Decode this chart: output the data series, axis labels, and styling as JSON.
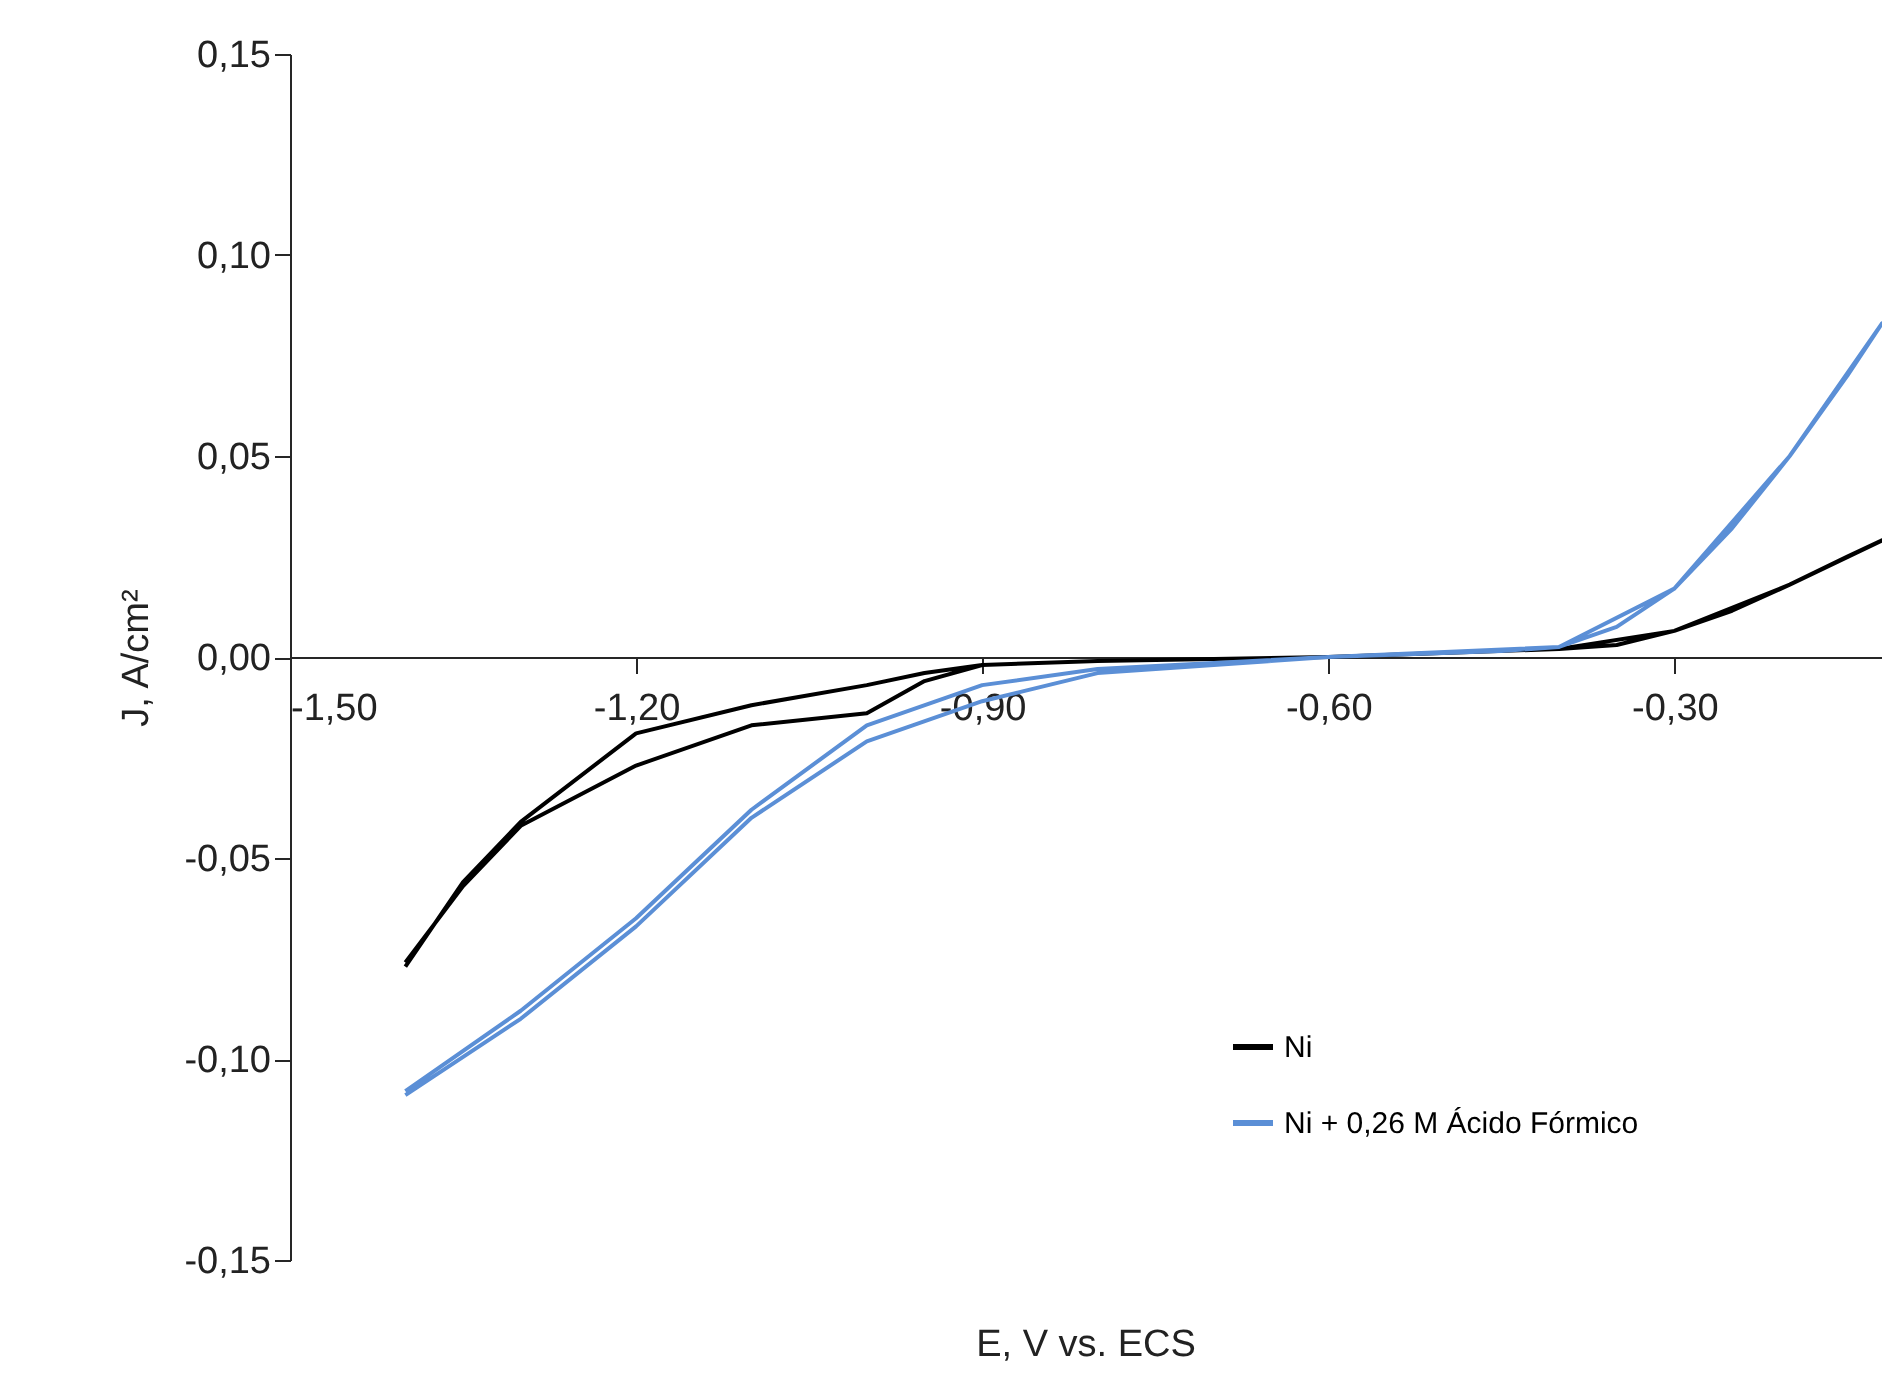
{
  "chart_data": {
    "type": "line",
    "xlabel": "E, V vs. ECS",
    "ylabel": "J, A/cm²",
    "xlim": [
      -1.5,
      -0.12
    ],
    "ylim": [
      -0.15,
      0.15
    ],
    "xticks": [
      {
        "value": -1.5,
        "label": "-1,50"
      },
      {
        "value": -1.2,
        "label": "-1,20"
      },
      {
        "value": -0.9,
        "label": "-0,90"
      },
      {
        "value": -0.6,
        "label": "-0,60"
      },
      {
        "value": -0.3,
        "label": "-0,30"
      }
    ],
    "yticks": [
      {
        "value": -0.15,
        "label": "-0,15"
      },
      {
        "value": -0.1,
        "label": "-0,10"
      },
      {
        "value": -0.05,
        "label": "-0,05"
      },
      {
        "value": 0,
        "label": "0,00"
      },
      {
        "value": 0.05,
        "label": "0,05"
      },
      {
        "value": 0.1,
        "label": "0,10"
      },
      {
        "value": 0.15,
        "label": "0,15"
      }
    ],
    "grid": false,
    "legend": "bottom right",
    "marker": "none",
    "line_style": "solid",
    "series": [
      {
        "name": "Ni",
        "color": "#000000",
        "x": [
          -1.4,
          -1.35,
          -1.3,
          -1.2,
          -1.1,
          -1.0,
          -0.95,
          -0.9,
          -0.8,
          -0.6,
          -0.4,
          -0.35,
          -0.3,
          -0.25,
          -0.2,
          -0.15,
          -0.12,
          -0.2,
          -0.3,
          -0.4,
          -0.6,
          -0.8,
          -0.9,
          -0.95,
          -1.0,
          -1.1,
          -1.2,
          -1.3,
          -1.35,
          -1.4
        ],
        "values": [
          -0.077,
          -0.056,
          -0.041,
          -0.019,
          -0.012,
          -0.007,
          -0.004,
          -0.002,
          -0.001,
          0.0,
          0.002,
          0.003,
          0.0065,
          0.0115,
          0.018,
          0.025,
          0.029,
          0.018,
          0.0065,
          0.002,
          0.0,
          -0.001,
          -0.002,
          -0.006,
          -0.014,
          -0.017,
          -0.027,
          -0.042,
          -0.057,
          -0.076
        ]
      },
      {
        "name": "Ni + 0,26 M Ácido Fórmico",
        "color": "#5b8fd6",
        "x": [
          -1.4,
          -1.3,
          -1.2,
          -1.1,
          -1.0,
          -0.9,
          -0.8,
          -0.6,
          -0.45,
          -0.4,
          -0.35,
          -0.3,
          -0.25,
          -0.2,
          -0.15,
          -0.12,
          -0.2,
          -0.3,
          -0.4,
          -0.6,
          -0.8,
          -0.9,
          -1.0,
          -1.1,
          -1.2,
          -1.3,
          -1.4
        ],
        "values": [
          -0.108,
          -0.088,
          -0.065,
          -0.038,
          -0.017,
          -0.007,
          -0.003,
          0.0,
          0.0015,
          0.0025,
          0.0075,
          0.017,
          0.032,
          0.05,
          0.07,
          0.083,
          0.05,
          0.017,
          0.0025,
          0.0,
          -0.004,
          -0.011,
          -0.021,
          -0.04,
          -0.067,
          -0.09,
          -0.109
        ]
      }
    ]
  }
}
